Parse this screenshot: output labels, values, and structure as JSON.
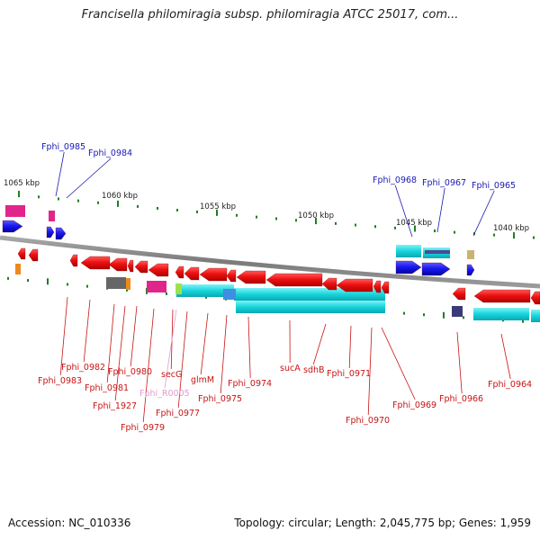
{
  "title": "Francisella philomiragia subsp. philomiragia ATCC 25017, com...",
  "accession_line": "Accession: NC_010336",
  "stats_line": "Topology: circular; Length: 2,045,775 bp; Genes: 1,959",
  "scale_labels": [
    "1065 kbp",
    "1060 kbp",
    "1055 kbp",
    "1050 kbp",
    "1045 kbp",
    "1040 kbp"
  ],
  "upper_gene_labels": [
    "Fphi_0985",
    "Fphi_0984",
    "Fphi_0968",
    "Fphi_0967",
    "Fphi_0965"
  ],
  "lower_gene_labels": [
    "Fphi_0982",
    "Fphi_0983",
    "Fphi_0981",
    "Fphi_0980",
    "Fphi_1927",
    "Fphi_0979",
    "secG",
    "Fphi_R0005",
    "Fphi_0977",
    "glmM",
    "Fphi_0975",
    "Fphi_0974",
    "sucA",
    "sdhB",
    "Fphi_0971",
    "Fphi_0970",
    "Fphi_0969",
    "Fphi_0966",
    "Fphi_0964"
  ],
  "colors": {
    "forward_gene": "#1a1aee",
    "reverse_gene": "#ee1111",
    "upper_label": "#1a1ab4",
    "lower_label": "#c81414",
    "rna_label": "#e49ad0",
    "protein_band": "#17d4dc",
    "backbone": "#8c8c8c",
    "tick": "#1f7f1f"
  }
}
